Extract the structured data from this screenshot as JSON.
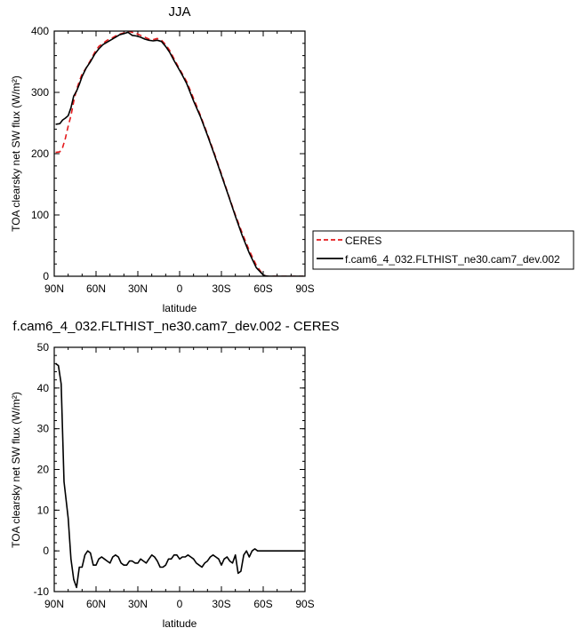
{
  "chart_data": [
    {
      "type": "line",
      "title": "JJA",
      "xlabel": "latitude",
      "ylabel": "TOA clearsky net SW flux (W/m²)",
      "xlim": [
        90,
        -90
      ],
      "ylim": [
        0,
        400
      ],
      "x_ticks": [
        "90N",
        "60N",
        "30N",
        "0",
        "30S",
        "60S",
        "90S"
      ],
      "y_ticks": [
        "0",
        "100",
        "200",
        "300",
        "400"
      ],
      "legend": {
        "placement": "right",
        "entries": [
          "CERES",
          "f.cam6_4_032.FLTHIST_ne30.cam7_dev.002"
        ]
      },
      "series": [
        {
          "name": "CERES",
          "color": "#e41a1c",
          "dash": "dashed",
          "x": [
            89,
            86,
            84,
            82,
            80,
            78,
            76,
            74,
            72,
            70,
            67,
            64,
            61,
            58,
            55,
            52,
            49,
            46,
            43,
            40,
            37,
            34,
            31,
            28,
            25,
            22,
            19,
            16,
            13,
            10,
            7,
            4,
            1,
            -2,
            -5,
            -10,
            -15,
            -20,
            -25,
            -30,
            -35,
            -40,
            -45,
            -50,
            -55,
            -60,
            -62,
            -64,
            -66,
            -68,
            -70,
            -75,
            -80,
            -85,
            -89
          ],
          "y": [
            202,
            203,
            210,
            225,
            245,
            262,
            285,
            305,
            318,
            330,
            340,
            352,
            365,
            375,
            380,
            385,
            388,
            392,
            395,
            397,
            400,
            398,
            396,
            393,
            390,
            387,
            386,
            388,
            385,
            378,
            368,
            355,
            342,
            330,
            318,
            290,
            262,
            232,
            200,
            167,
            133,
            100,
            70,
            42,
            18,
            2,
            0.5,
            0,
            0,
            0,
            0,
            0,
            0,
            0,
            0
          ]
        },
        {
          "name": "f.cam6_4_032.FLTHIST_ne30.cam7_dev.002",
          "color": "#000000",
          "dash": "solid",
          "x": [
            89,
            86,
            84,
            82,
            80,
            78,
            76,
            74,
            72,
            70,
            67,
            64,
            61,
            58,
            55,
            52,
            49,
            46,
            43,
            40,
            37,
            34,
            31,
            28,
            25,
            22,
            19,
            16,
            13,
            10,
            7,
            4,
            1,
            -2,
            -5,
            -10,
            -15,
            -20,
            -25,
            -30,
            -35,
            -40,
            -45,
            -50,
            -55,
            -60,
            -62,
            -64,
            -66,
            -68,
            -70,
            -75,
            -80,
            -85,
            -89
          ],
          "y": [
            248,
            249,
            255,
            258,
            262,
            275,
            294,
            302,
            313,
            326,
            340,
            350,
            362,
            371,
            378,
            382,
            386,
            390,
            394,
            396,
            398,
            393,
            392,
            390,
            387,
            385,
            384,
            385,
            383,
            375,
            365,
            352,
            340,
            328,
            315,
            286,
            260,
            230,
            198,
            165,
            132,
            98,
            66,
            38,
            14,
            2,
            0.5,
            0,
            0,
            0,
            0,
            0,
            0,
            0,
            0
          ]
        }
      ]
    },
    {
      "type": "line",
      "title": "f.cam6_4_032.FLTHIST_ne30.cam7_dev.002 - CERES",
      "xlabel": "latitude",
      "ylabel": "TOA clearsky net SW flux (W/m²)",
      "xlim": [
        90,
        -90
      ],
      "ylim": [
        -10,
        50
      ],
      "x_ticks": [
        "90N",
        "60N",
        "30N",
        "0",
        "30S",
        "60S",
        "90S"
      ],
      "y_ticks": [
        "-10",
        "0",
        "10",
        "20",
        "30",
        "40",
        "50"
      ],
      "series": [
        {
          "color": "#000000",
          "dash": "solid",
          "x": [
            89,
            87,
            85,
            83,
            80,
            78,
            76,
            74,
            72,
            70,
            68,
            66,
            64,
            62,
            60,
            58,
            56,
            54,
            52,
            50,
            48,
            46,
            44,
            42,
            40,
            38,
            36,
            34,
            32,
            30,
            28,
            26,
            24,
            22,
            20,
            18,
            16,
            14,
            12,
            10,
            8,
            6,
            4,
            2,
            0,
            -2,
            -4,
            -6,
            -8,
            -10,
            -12,
            -14,
            -16,
            -18,
            -20,
            -22,
            -24,
            -26,
            -28,
            -30,
            -32,
            -34,
            -36,
            -38,
            -40,
            -42,
            -44,
            -46,
            -48,
            -50,
            -52,
            -54,
            -56,
            -58,
            -60,
            -62,
            -64,
            -66,
            -68,
            -70,
            -72,
            -74,
            -76,
            -80,
            -85,
            -89
          ],
          "y": [
            46,
            45.5,
            41,
            17,
            8,
            -2,
            -7,
            -9,
            -4,
            -4,
            -1,
            0,
            -0.5,
            -3.5,
            -3.5,
            -2,
            -1.5,
            -2,
            -2.5,
            -3,
            -1.5,
            -1,
            -1.5,
            -3,
            -3.5,
            -3.5,
            -2.5,
            -2.5,
            -3,
            -3,
            -2,
            -2.5,
            -3,
            -2,
            -1,
            -1.5,
            -2.5,
            -4,
            -4,
            -3.5,
            -2,
            -2,
            -1,
            -1,
            -2,
            -1.5,
            -1.5,
            -1,
            -1.5,
            -2,
            -3,
            -3.5,
            -4,
            -3,
            -2.5,
            -1.5,
            -1,
            -1.5,
            -2,
            -3.5,
            -2,
            -1.5,
            -2.5,
            -3,
            -1,
            -5.5,
            -5,
            -1,
            0,
            -1.5,
            0,
            0.5,
            0,
            0,
            0,
            0,
            0,
            0,
            0,
            0,
            0,
            0,
            0,
            0,
            0,
            0
          ]
        }
      ]
    }
  ]
}
